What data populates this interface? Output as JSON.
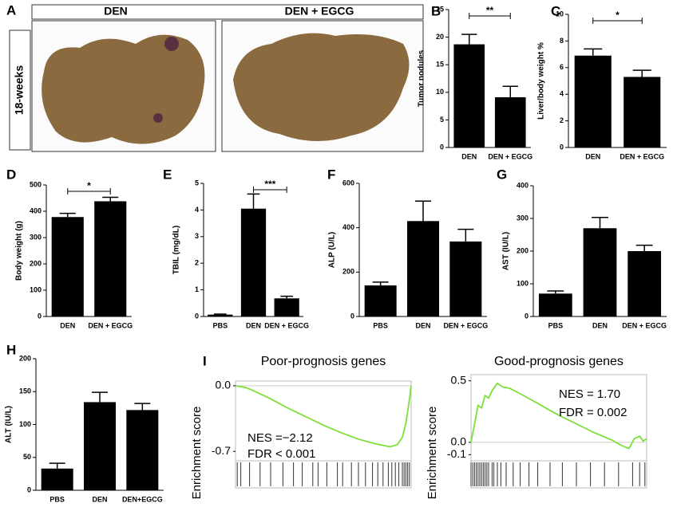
{
  "panel_a": {
    "letter": "A",
    "column_labels": [
      "DEN",
      "DEN + EGCG"
    ],
    "row_label": "18-weeks"
  },
  "panel_i": "I",
  "chart_data": [
    {
      "type": "bar",
      "panel": "B",
      "ylabel": "Tumor nodules",
      "categories": [
        "DEN",
        "DEN + EGCG"
      ],
      "values": [
        18.7,
        9.1
      ],
      "errors": [
        1.8,
        2.0
      ],
      "color": "#000000",
      "ylim": [
        0,
        25
      ],
      "yticks": [
        0,
        5,
        10,
        15,
        20,
        25
      ],
      "significance": "**"
    },
    {
      "type": "bar",
      "panel": "C",
      "ylabel": "Liver/body weight %",
      "categories": [
        "DEN",
        "DEN + EGCG"
      ],
      "values": [
        6.9,
        5.3
      ],
      "errors": [
        0.5,
        0.5
      ],
      "color": "#000000",
      "ylim": [
        0,
        10
      ],
      "yticks": [
        0,
        2,
        4,
        6,
        8,
        10
      ],
      "significance": "*"
    },
    {
      "type": "bar",
      "panel": "D",
      "ylabel": "Body weight (g)",
      "categories": [
        "DEN",
        "DEN + EGCG"
      ],
      "values": [
        378,
        438
      ],
      "errors": [
        14,
        15
      ],
      "color": "#000000",
      "ylim": [
        0,
        500
      ],
      "yticks": [
        0,
        100,
        200,
        300,
        400,
        500
      ],
      "significance": "*"
    },
    {
      "type": "bar",
      "panel": "E",
      "ylabel": "TBIL (mg/dL)",
      "categories": [
        "PBS",
        "DEN",
        "DEN + EGCG"
      ],
      "values": [
        0.07,
        4.05,
        0.68
      ],
      "errors": [
        0.02,
        0.55,
        0.08
      ],
      "color": "#000000",
      "ylim": [
        0,
        5
      ],
      "yticks": [
        0,
        1,
        2,
        3,
        4,
        5
      ],
      "significance": "***"
    },
    {
      "type": "bar",
      "panel": "F",
      "ylabel": "ALP (U/L)",
      "categories": [
        "PBS",
        "DEN",
        "DEN + EGCG"
      ],
      "values": [
        140,
        430,
        338
      ],
      "errors": [
        15,
        90,
        55
      ],
      "color": "#000000",
      "ylim": [
        0,
        600
      ],
      "yticks": [
        0,
        200,
        400,
        600
      ]
    },
    {
      "type": "bar",
      "panel": "G",
      "ylabel": "AST (IU/L)",
      "categories": [
        "PBS",
        "DEN",
        "DEN + EGCG"
      ],
      "values": [
        70,
        270,
        200
      ],
      "errors": [
        8,
        33,
        18
      ],
      "color": "#000000",
      "ylim": [
        0,
        400
      ],
      "yticks": [
        0,
        100,
        200,
        300,
        400
      ]
    },
    {
      "type": "bar",
      "panel": "H",
      "ylabel": "ALT (IU/L)",
      "categories": [
        "PBS",
        "DEN",
        "DEN+EGCG"
      ],
      "values": [
        33,
        134,
        122
      ],
      "errors": [
        8,
        15,
        10
      ],
      "color": "#000000",
      "ylim": [
        0,
        200
      ],
      "yticks": [
        0,
        50,
        100,
        150,
        200
      ]
    },
    {
      "type": "line",
      "title": "Poor-prognosis genes",
      "ylabel": "Enrichment score",
      "annotations": [
        "NES =−2.12",
        "FDR < 0.001"
      ],
      "color": "#7de03a",
      "x": [
        0,
        3,
        6,
        10,
        20,
        30,
        40,
        50,
        60,
        70,
        80,
        85,
        88,
        92,
        95,
        97,
        99,
        100
      ],
      "values": [
        0,
        -0.01,
        -0.02,
        -0.05,
        -0.14,
        -0.24,
        -0.33,
        -0.42,
        -0.5,
        -0.57,
        -0.62,
        -0.64,
        -0.65,
        -0.63,
        -0.55,
        -0.4,
        -0.15,
        0
      ],
      "hits": [
        1,
        3,
        8,
        14,
        20,
        27,
        33,
        38,
        44,
        47,
        52,
        58,
        61,
        66,
        70,
        74,
        78,
        81,
        84,
        87,
        89,
        91,
        93,
        95,
        96,
        97,
        98,
        99
      ],
      "xlim": [
        0,
        100
      ],
      "ylim": [
        -0.8,
        0.05
      ],
      "yticks": [
        {
          "value": 0,
          "label": "0.0"
        },
        -0.7
      ]
    },
    {
      "type": "line",
      "title": "Good-prognosis genes",
      "ylabel": "Enrichment score",
      "annotations": [
        "NES = 1.70",
        "FDR = 0.002"
      ],
      "color": "#7de03a",
      "x": [
        0,
        2,
        4,
        6,
        8,
        10,
        12,
        15,
        18,
        22,
        30,
        40,
        50,
        60,
        70,
        80,
        85,
        88,
        90,
        93,
        96,
        98,
        100
      ],
      "values": [
        0,
        0.15,
        0.3,
        0.28,
        0.38,
        0.36,
        0.42,
        0.48,
        0.45,
        0.44,
        0.38,
        0.3,
        0.22,
        0.15,
        0.08,
        0.02,
        -0.02,
        -0.04,
        -0.05,
        0.03,
        0.05,
        0.01,
        0.03
      ],
      "hits": [
        0,
        1,
        2,
        3,
        4,
        5,
        6,
        7,
        8,
        9,
        10,
        12,
        13,
        15,
        17,
        20,
        24,
        28,
        33,
        38,
        45,
        52,
        60,
        68,
        76,
        84,
        92,
        96,
        99
      ],
      "xlim": [
        0,
        100
      ],
      "ylim": [
        -0.15,
        0.55
      ],
      "yticks": [
        0.5,
        {
          "value": 0,
          "label": "0.0"
        },
        -0.1
      ]
    }
  ]
}
